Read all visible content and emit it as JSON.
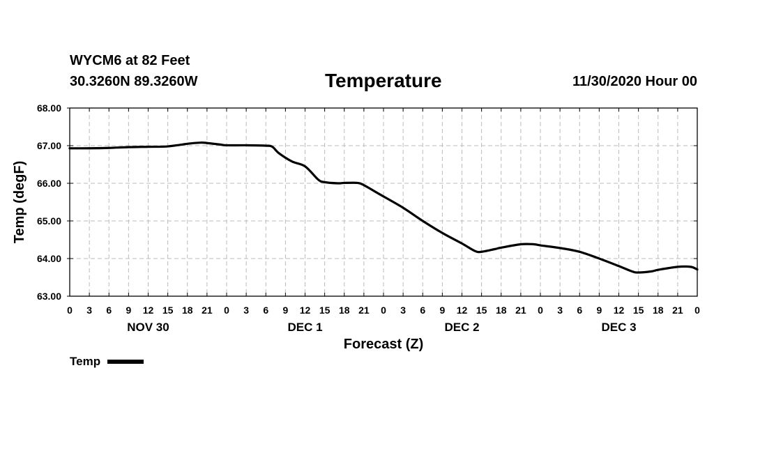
{
  "header": {
    "station": "WYCM6 at 82 Feet",
    "coords": "30.3260N 89.3260W",
    "run": "11/30/2020 Hour 00"
  },
  "colors": {
    "line": "#000000",
    "grid": "#bbbbbb",
    "frame": "#000000"
  },
  "chart_data": {
    "type": "line",
    "title": "Temperature",
    "xlabel": "Forecast (Z)",
    "ylabel": "Temp (degF)",
    "ylim": [
      63.0,
      68.0
    ],
    "xlim": [
      0,
      96
    ],
    "x_units": "hours since 11/30/2020 00Z",
    "yticks": [
      "63.00",
      "64.00",
      "65.00",
      "66.00",
      "67.00",
      "68.00"
    ],
    "xtick_labels": [
      "0",
      "3",
      "6",
      "9",
      "12",
      "15",
      "18",
      "21",
      "0",
      "3",
      "6",
      "9",
      "12",
      "15",
      "18",
      "21",
      "0",
      "3",
      "6",
      "9",
      "12",
      "15",
      "18",
      "21",
      "0",
      "3",
      "6",
      "9",
      "12",
      "15",
      "18",
      "21",
      "0"
    ],
    "day_labels": [
      {
        "label": "NOV 30",
        "hour": 12
      },
      {
        "label": "DEC 1",
        "hour": 36
      },
      {
        "label": "DEC 2",
        "hour": 60
      },
      {
        "label": "DEC 3",
        "hour": 84
      }
    ],
    "grid": true,
    "legend": "bottom-left",
    "series": [
      {
        "name": "Temp",
        "x": [
          0,
          3,
          6,
          9,
          12,
          15,
          18,
          20,
          21,
          23,
          24,
          27,
          30,
          31,
          32,
          34,
          36,
          38,
          39,
          41,
          42,
          44,
          45,
          47,
          48,
          51,
          54,
          57,
          60,
          62,
          63,
          65,
          66,
          69,
          71,
          72,
          75,
          78,
          81,
          84,
          86,
          87,
          89,
          90,
          93,
          95,
          96
        ],
        "y": [
          66.93,
          66.93,
          66.94,
          66.96,
          66.97,
          66.98,
          67.05,
          67.08,
          67.07,
          67.03,
          67.01,
          67.01,
          67.0,
          66.97,
          66.8,
          66.58,
          66.45,
          66.1,
          66.03,
          66.0,
          66.01,
          66.01,
          65.95,
          65.75,
          65.65,
          65.35,
          65.0,
          64.68,
          64.4,
          64.2,
          64.18,
          64.25,
          64.29,
          64.38,
          64.38,
          64.35,
          64.28,
          64.18,
          64.0,
          63.8,
          63.66,
          63.63,
          63.66,
          63.7,
          63.78,
          63.78,
          63.71
        ]
      }
    ]
  },
  "legend": {
    "label": "Temp"
  }
}
